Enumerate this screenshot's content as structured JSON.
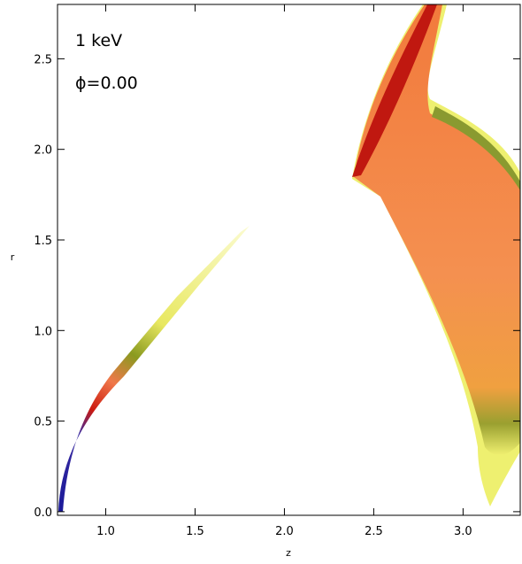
{
  "chart_data": {
    "type": "heatmap",
    "annotations": [
      "1  keV",
      "ϕ=0.00"
    ],
    "x_label": "z",
    "y_label": "r",
    "xlim": [
      0.73,
      3.32
    ],
    "ylim": [
      -0.02,
      2.8
    ],
    "xticks": [
      {
        "value": 1,
        "label": "1.0"
      },
      1.5,
      {
        "value": 2,
        "label": "2.0"
      },
      2.5,
      {
        "value": 3,
        "label": "3.0"
      }
    ],
    "yticks": [
      {
        "value": 0,
        "label": "0.0"
      },
      0.5,
      {
        "value": 1,
        "label": "1.0"
      },
      1.5,
      {
        "value": 2,
        "label": "2.0"
      },
      2.5
    ]
  }
}
